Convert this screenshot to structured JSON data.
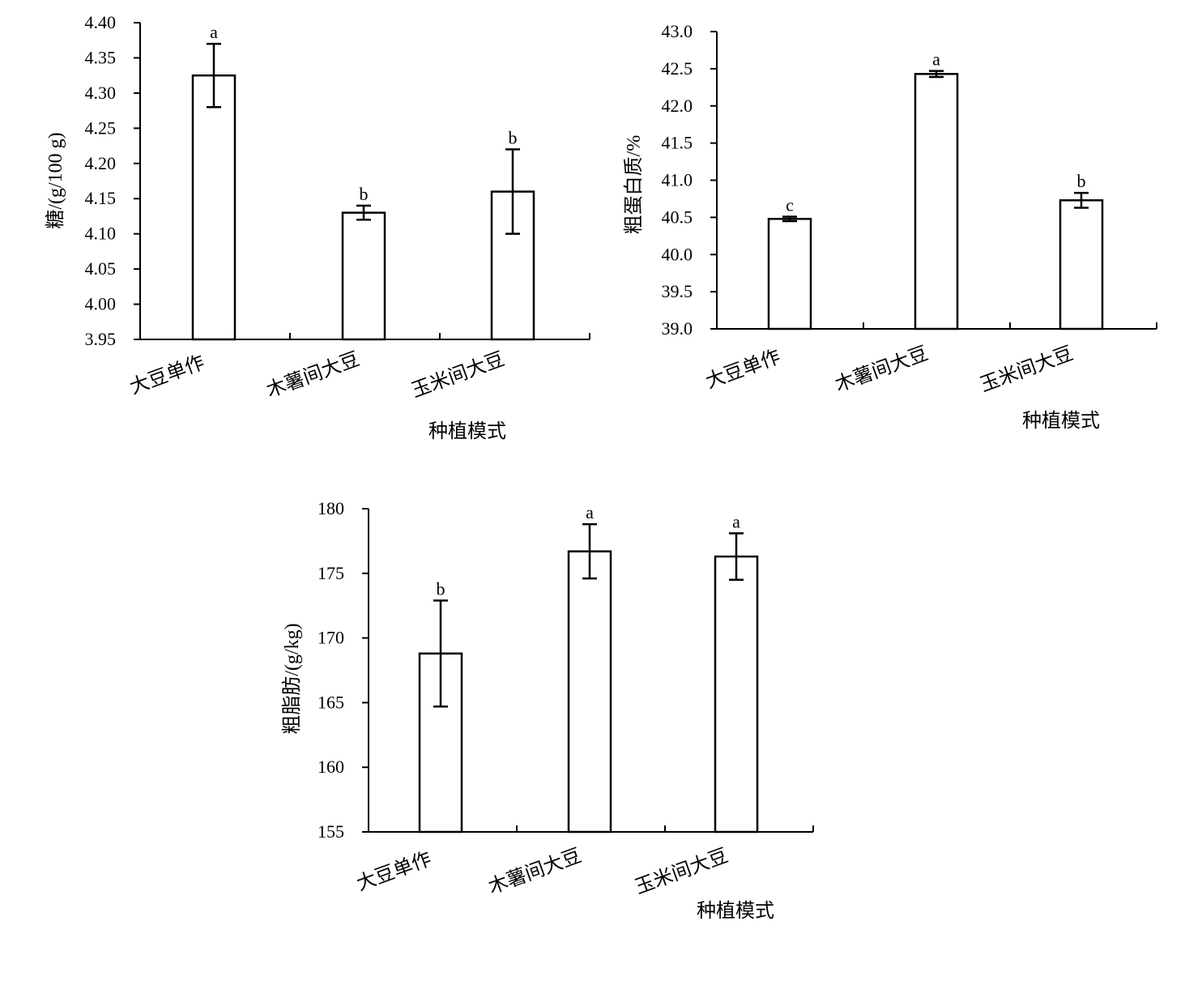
{
  "chart_data": [
    {
      "type": "bar",
      "categories": [
        "大豆单作",
        "木薯间大豆",
        "玉米间大豆"
      ],
      "values": [
        4.325,
        4.13,
        4.16
      ],
      "errors": [
        0.045,
        0.01,
        0.06
      ],
      "significance": [
        "a",
        "b",
        "b"
      ],
      "ylabel": "糖/(g/100 g)",
      "xlabel": "种植模式",
      "ylim": [
        3.95,
        4.4
      ],
      "yticks": [
        "3.95",
        "4.00",
        "4.05",
        "4.10",
        "4.15",
        "4.20",
        "4.25",
        "4.30",
        "4.35",
        "4.40"
      ],
      "grid": false,
      "bar_color": "#ffffff",
      "line_color": "#000000"
    },
    {
      "type": "bar",
      "categories": [
        "大豆单作",
        "木薯间大豆",
        "玉米间大豆"
      ],
      "values": [
        40.48,
        42.43,
        40.73
      ],
      "errors": [
        0.03,
        0.04,
        0.1
      ],
      "significance": [
        "c",
        "a",
        "b"
      ],
      "ylabel": "粗蛋白质/%",
      "xlabel": "种植模式",
      "ylim": [
        39.0,
        43.0
      ],
      "yticks": [
        "39.0",
        "39.5",
        "40.0",
        "40.5",
        "41.0",
        "41.5",
        "42.0",
        "42.5",
        "43.0"
      ],
      "grid": false,
      "bar_color": "#ffffff",
      "line_color": "#000000"
    },
    {
      "type": "bar",
      "categories": [
        "大豆单作",
        "木薯间大豆",
        "玉米间大豆"
      ],
      "values": [
        168.8,
        176.7,
        176.3
      ],
      "errors": [
        4.1,
        2.1,
        1.8
      ],
      "significance": [
        "b",
        "a",
        "a"
      ],
      "ylabel": "粗脂肪/(g/kg)",
      "xlabel": "种植模式",
      "ylim": [
        155,
        180
      ],
      "yticks": [
        "155",
        "160",
        "165",
        "170",
        "175",
        "180"
      ],
      "grid": false,
      "bar_color": "#ffffff",
      "line_color": "#000000"
    }
  ]
}
